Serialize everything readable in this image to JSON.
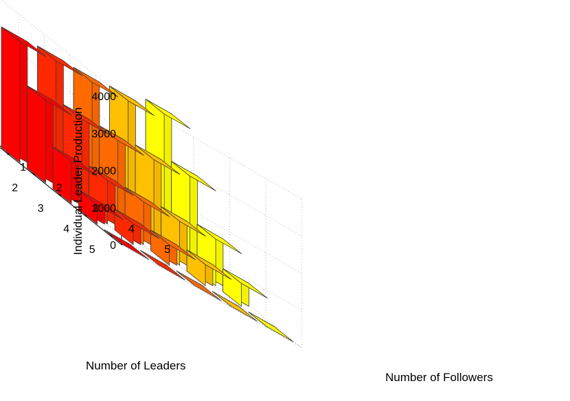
{
  "chart_data": {
    "type": "bar3d",
    "title": "",
    "xlabel": "Number of Followers",
    "ylabel": "Number of Leaders",
    "zlabel": "Individual Leader Production",
    "followers": [
      1,
      2,
      3,
      4,
      5
    ],
    "leaders": [
      1,
      2,
      3,
      4,
      5
    ],
    "zlim": [
      0,
      4000
    ],
    "zticks": [
      0,
      1000,
      2000,
      3000,
      4000
    ],
    "grid": true,
    "colormap_by_followers": [
      "#ff0000",
      "#ff2800",
      "#ff6a00",
      "#ffc000",
      "#ffff00"
    ],
    "values": [
      [
        3250,
        3290,
        3270,
        3320,
        3520
      ],
      [
        2220,
        2270,
        2250,
        2290,
        2400
      ],
      [
        1130,
        1170,
        1150,
        1180,
        1260
      ],
      [
        520,
        560,
        550,
        570,
        620
      ],
      [
        -230,
        -200,
        -170,
        -100,
        -40
      ]
    ]
  }
}
